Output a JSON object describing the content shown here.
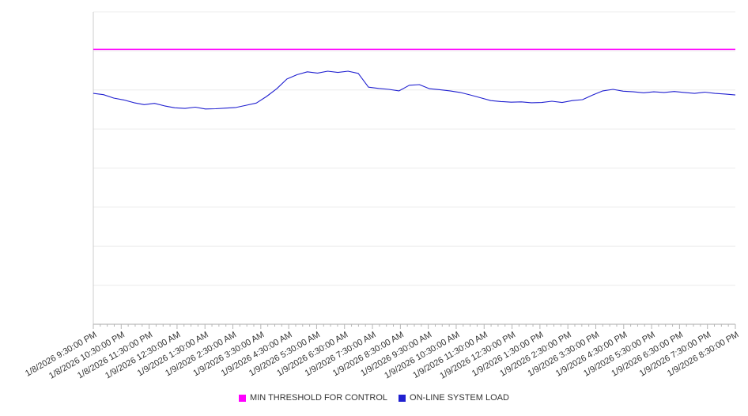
{
  "legend": {
    "threshold_label": "MIN THRESHOLD FOR CONTROL",
    "load_label": "ON-LINE SYSTEM LOAD"
  },
  "colors": {
    "threshold": "#ff00ff",
    "load": "#2020d0",
    "grid": "#ececec",
    "axis": "#aaaaaa",
    "tick": "#b5b5b5",
    "label_text": "#333333"
  },
  "chart_data": {
    "type": "line",
    "title": "",
    "xlabel": "",
    "ylabel": "",
    "ylim": [
      0,
      100
    ],
    "grid": true,
    "legend_position": "bottom",
    "categories": [
      "1/8/2026 9:30:00 PM",
      "1/8/2026 10:30:00 PM",
      "1/8/2026 11:30:00 PM",
      "1/9/2026 12:30:00 AM",
      "1/9/2026 1:30:00 AM",
      "1/9/2026 2:30:00 AM",
      "1/9/2026 3:30:00 AM",
      "1/9/2026 4:30:00 AM",
      "1/9/2026 5:30:00 AM",
      "1/9/2026 6:30:00 AM",
      "1/9/2026 7:30:00 AM",
      "1/9/2026 8:30:00 AM",
      "1/9/2026 9:30:00 AM",
      "1/9/2026 10:30:00 AM",
      "1/9/2026 11:30:00 AM",
      "1/9/2026 12:30:00 PM",
      "1/9/2026 1:30:00 PM",
      "1/9/2026 2:30:00 PM",
      "1/9/2026 3:30:00 PM",
      "1/9/2026 4:30:00 PM",
      "1/9/2026 5:30:00 PM",
      "1/9/2026 6:30:00 PM",
      "1/9/2026 7:30:00 PM",
      "1/9/2026 8:30:00 PM"
    ],
    "series": [
      {
        "name": "MIN THRESHOLD FOR CONTROL",
        "color": "#ff00ff",
        "values": [
          88,
          88
        ]
      },
      {
        "name": "ON-LINE SYSTEM LOAD",
        "color": "#2020d0",
        "values": [
          73.9,
          73.5,
          72.4,
          71.8,
          70.9,
          70.3,
          70.7,
          69.9,
          69.3,
          69.1,
          69.5,
          68.9,
          69.0,
          69.2,
          69.4,
          70.1,
          70.8,
          72.9,
          75.4,
          78.5,
          79.9,
          80.8,
          80.4,
          81.0,
          80.6,
          81.0,
          80.3,
          75.9,
          75.5,
          75.2,
          74.7,
          76.5,
          76.7,
          75.4,
          75.1,
          74.7,
          74.2,
          73.4,
          72.5,
          71.6,
          71.3,
          71.1,
          71.2,
          70.9,
          71.0,
          71.4,
          71.0,
          71.6,
          71.9,
          73.4,
          74.7,
          75.2,
          74.6,
          74.4,
          74.1,
          74.4,
          74.2,
          74.5,
          74.2,
          73.9,
          74.3,
          73.9,
          73.7,
          73.4
        ]
      }
    ]
  }
}
